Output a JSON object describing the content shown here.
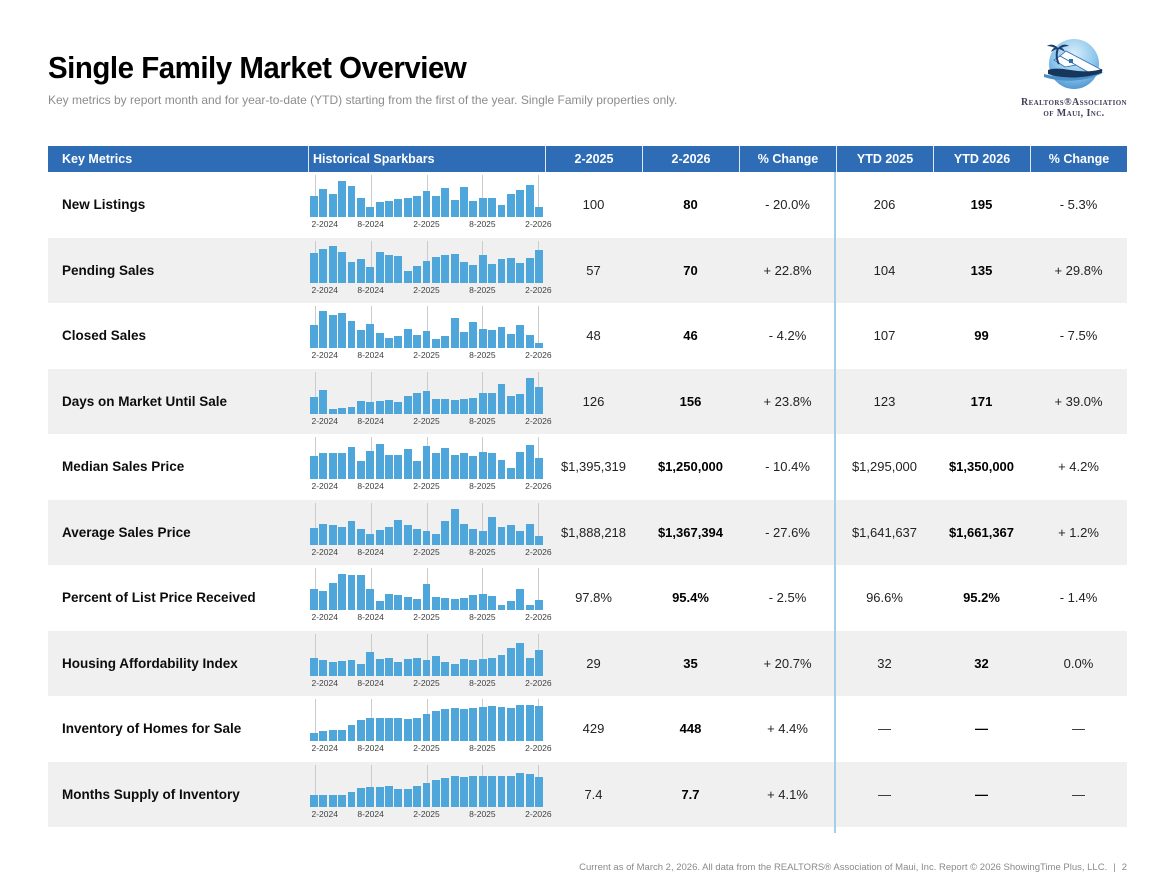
{
  "page": {
    "title": "Single Family Market Overview",
    "subtitle": "Key metrics by report month and for year-to-date (YTD) starting from the first of the year. Single Family properties only."
  },
  "logo": {
    "line1": "Realtors®Association",
    "line2": "of Maui, Inc."
  },
  "table": {
    "headers": [
      "Key Metrics",
      "Historical Sparkbars",
      "2-2025",
      "2-2026",
      "% Change",
      "YTD 2025",
      "YTD 2026",
      "% Change"
    ],
    "sparkbar_axis": [
      "2-2024",
      "8-2024",
      "2-2025",
      "8-2025",
      "2-2026"
    ],
    "rows": [
      {
        "metric": "New Listings",
        "month_prev": "100",
        "month_curr": "80",
        "month_change": "- 20.0%",
        "ytd_prev": "206",
        "ytd_curr": "195",
        "ytd_change": "- 5.3%"
      },
      {
        "metric": "Pending Sales",
        "month_prev": "57",
        "month_curr": "70",
        "month_change": "+ 22.8%",
        "ytd_prev": "104",
        "ytd_curr": "135",
        "ytd_change": "+ 29.8%"
      },
      {
        "metric": "Closed Sales",
        "month_prev": "48",
        "month_curr": "46",
        "month_change": "- 4.2%",
        "ytd_prev": "107",
        "ytd_curr": "99",
        "ytd_change": "- 7.5%"
      },
      {
        "metric": "Days on Market Until Sale",
        "month_prev": "126",
        "month_curr": "156",
        "month_change": "+ 23.8%",
        "ytd_prev": "123",
        "ytd_curr": "171",
        "ytd_change": "+ 39.0%"
      },
      {
        "metric": "Median Sales Price",
        "month_prev": "$1,395,319",
        "month_curr": "$1,250,000",
        "month_change": "- 10.4%",
        "ytd_prev": "$1,295,000",
        "ytd_curr": "$1,350,000",
        "ytd_change": "+ 4.2%"
      },
      {
        "metric": "Average Sales Price",
        "month_prev": "$1,888,218",
        "month_curr": "$1,367,394",
        "month_change": "- 27.6%",
        "ytd_prev": "$1,641,637",
        "ytd_curr": "$1,661,367",
        "ytd_change": "+ 1.2%"
      },
      {
        "metric": "Percent of List Price Received",
        "month_prev": "97.8%",
        "month_curr": "95.4%",
        "month_change": "- 2.5%",
        "ytd_prev": "96.6%",
        "ytd_curr": "95.2%",
        "ytd_change": "- 1.4%"
      },
      {
        "metric": "Housing Affordability Index",
        "month_prev": "29",
        "month_curr": "35",
        "month_change": "+ 20.7%",
        "ytd_prev": "32",
        "ytd_curr": "32",
        "ytd_change": "0.0%"
      },
      {
        "metric": "Inventory of Homes for Sale",
        "month_prev": "429",
        "month_curr": "448",
        "month_change": "+ 4.4%",
        "ytd_prev": "—",
        "ytd_curr": "—",
        "ytd_change": "—"
      },
      {
        "metric": "Months Supply of Inventory",
        "month_prev": "7.4",
        "month_curr": "7.7",
        "month_change": "+ 4.1%",
        "ytd_prev": "—",
        "ytd_curr": "—",
        "ytd_change": "—"
      }
    ]
  },
  "footer": {
    "text": "Current as of March 2, 2026. All data from the REALTORS® Association of Maui, Inc. Report © 2026 ShowingTime Plus, LLC.",
    "separator": "|",
    "page_number": "2"
  },
  "colors": {
    "header_blue": "#2e6cb6",
    "bar_blue": "#4fa6db",
    "divider_blue": "#a3cfe9",
    "row_alt": "#f0f0f0",
    "tick_gray": "#cbcbcb"
  },
  "chart_data": [
    {
      "type": "bar",
      "metric": "New Listings",
      "note": "unlabeled sparkbar; values are relative bar heights (% of max)",
      "x_labels": [
        "2-2024",
        "8-2024",
        "2-2025",
        "8-2025",
        "2-2026"
      ],
      "values_relative_height_pct": [
        55,
        75,
        62,
        95,
        82,
        50,
        28,
        40,
        42,
        47,
        52,
        57,
        68,
        57,
        78,
        45,
        80,
        43,
        52,
        50,
        33,
        62,
        72,
        85,
        28
      ]
    },
    {
      "type": "bar",
      "metric": "Pending Sales",
      "note": "unlabeled sparkbar; values are relative bar heights (% of max)",
      "x_labels": [
        "2-2024",
        "8-2024",
        "2-2025",
        "8-2025",
        "2-2026"
      ],
      "values_relative_height_pct": [
        78,
        88,
        97,
        80,
        55,
        62,
        42,
        82,
        72,
        70,
        32,
        45,
        57,
        68,
        72,
        75,
        55,
        48,
        73,
        50,
        62,
        65,
        52,
        65,
        85
      ]
    },
    {
      "type": "bar",
      "metric": "Closed Sales",
      "note": "unlabeled sparkbar; values are relative bar heights (% of max)",
      "x_labels": [
        "2-2024",
        "8-2024",
        "2-2025",
        "8-2025",
        "2-2026"
      ],
      "values_relative_height_pct": [
        60,
        98,
        88,
        92,
        72,
        48,
        65,
        40,
        28,
        32,
        52,
        35,
        45,
        25,
        32,
        80,
        42,
        70,
        50,
        48,
        55,
        38,
        60,
        35,
        15
      ]
    },
    {
      "type": "bar",
      "metric": "Days on Market Until Sale",
      "note": "unlabeled sparkbar; values are relative bar heights (% of max)",
      "x_labels": [
        "2-2024",
        "8-2024",
        "2-2025",
        "8-2025",
        "2-2026"
      ],
      "values_relative_height_pct": [
        45,
        62,
        12,
        15,
        18,
        33,
        32,
        33,
        36,
        30,
        48,
        55,
        60,
        40,
        38,
        36,
        40,
        42,
        55,
        55,
        78,
        48,
        52,
        95,
        70
      ]
    },
    {
      "type": "bar",
      "metric": "Median Sales Price",
      "note": "unlabeled sparkbar; values are relative bar heights (% of max)",
      "x_labels": [
        "2-2024",
        "8-2024",
        "2-2025",
        "8-2025",
        "2-2026"
      ],
      "values_relative_height_pct": [
        62,
        68,
        68,
        68,
        85,
        48,
        75,
        92,
        65,
        65,
        80,
        48,
        88,
        68,
        82,
        65,
        68,
        62,
        72,
        68,
        52,
        30,
        72,
        90,
        55
      ]
    },
    {
      "type": "bar",
      "metric": "Average Sales Price",
      "note": "unlabeled sparkbar; values are relative bar heights (% of max)",
      "x_labels": [
        "2-2024",
        "8-2024",
        "2-2025",
        "8-2025",
        "2-2026"
      ],
      "values_relative_height_pct": [
        45,
        55,
        52,
        48,
        62,
        42,
        28,
        38,
        48,
        65,
        52,
        42,
        35,
        28,
        62,
        95,
        55,
        42,
        35,
        72,
        48,
        52,
        35,
        55,
        22
      ]
    },
    {
      "type": "bar",
      "metric": "Percent of List Price Received",
      "note": "unlabeled sparkbar; values are relative bar heights (% of max)",
      "x_labels": [
        "2-2024",
        "8-2024",
        "2-2025",
        "8-2025",
        "2-2026"
      ],
      "values_relative_height_pct": [
        55,
        52,
        72,
        95,
        93,
        93,
        55,
        25,
        42,
        40,
        35,
        30,
        68,
        35,
        32,
        30,
        32,
        40,
        42,
        38,
        15,
        25,
        55,
        15,
        28
      ]
    },
    {
      "type": "bar",
      "metric": "Housing Affordability Index",
      "note": "unlabeled sparkbar; values are relative bar heights (% of max)",
      "x_labels": [
        "2-2024",
        "8-2024",
        "2-2025",
        "8-2025",
        "2-2026"
      ],
      "values_relative_height_pct": [
        48,
        42,
        35,
        38,
        42,
        30,
        62,
        45,
        48,
        35,
        45,
        48,
        42,
        52,
        35,
        30,
        45,
        42,
        45,
        48,
        55,
        72,
        85,
        48,
        68
      ]
    },
    {
      "type": "bar",
      "metric": "Inventory of Homes for Sale",
      "note": "unlabeled sparkbar; values are relative bar heights (% of max)",
      "x_labels": [
        "2-2024",
        "8-2024",
        "2-2025",
        "8-2025",
        "2-2026"
      ],
      "values_relative_height_pct": [
        22,
        28,
        30,
        30,
        42,
        55,
        60,
        62,
        62,
        60,
        58,
        62,
        72,
        80,
        85,
        88,
        85,
        88,
        90,
        92,
        90,
        88,
        95,
        95,
        92
      ]
    },
    {
      "type": "bar",
      "metric": "Months Supply of Inventory",
      "note": "unlabeled sparkbar; values are relative bar heights (% of max)",
      "x_labels": [
        "2-2024",
        "8-2024",
        "2-2025",
        "8-2025",
        "2-2026"
      ],
      "values_relative_height_pct": [
        30,
        32,
        30,
        30,
        40,
        50,
        52,
        52,
        55,
        48,
        48,
        55,
        62,
        70,
        75,
        80,
        78,
        80,
        82,
        82,
        80,
        82,
        88,
        85,
        78
      ]
    }
  ]
}
